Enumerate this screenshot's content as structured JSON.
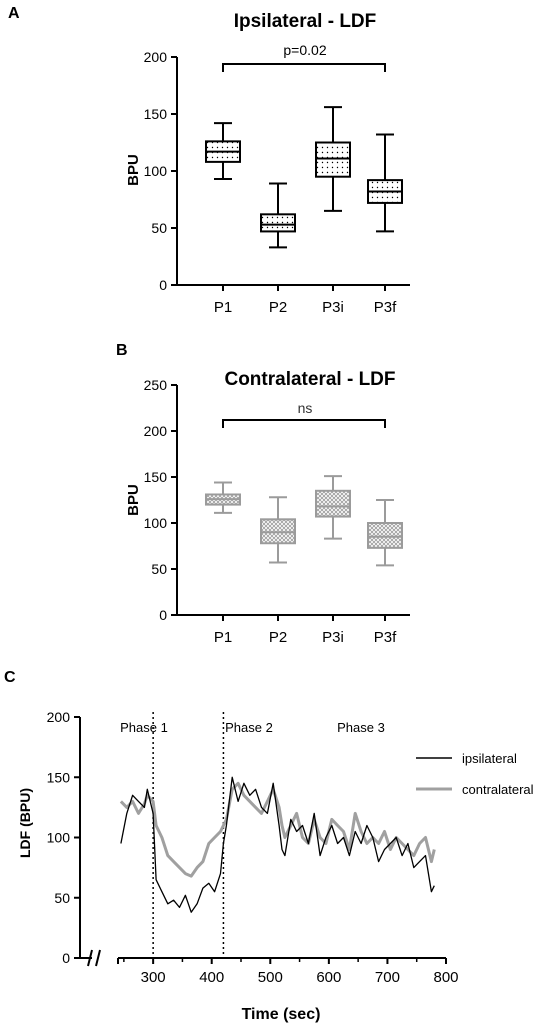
{
  "chart_data": [
    {
      "panel": "A",
      "type": "box",
      "title": "Ipsilateral - LDF",
      "ylabel": "BPU",
      "ylim": [
        0,
        200
      ],
      "yticks": [
        0,
        50,
        100,
        150,
        200
      ],
      "categories": [
        "P1",
        "P2",
        "P3i",
        "P3f"
      ],
      "boxes": [
        {
          "min": 93,
          "q1": 108,
          "median": 117,
          "q3": 126,
          "max": 142
        },
        {
          "min": 33,
          "q1": 47,
          "median": 53,
          "q3": 62,
          "max": 89
        },
        {
          "min": 65,
          "q1": 95,
          "median": 111,
          "q3": 125,
          "max": 156
        },
        {
          "min": 47,
          "q1": 72,
          "median": 82,
          "q3": 92,
          "max": 132
        }
      ],
      "comparison": {
        "from": 0,
        "to": 3,
        "label": "p=0.02"
      },
      "color": "#000000",
      "fill": "dotted"
    },
    {
      "panel": "B",
      "type": "box",
      "title": "Contralateral - LDF",
      "ylabel": "BPU",
      "ylim": [
        0,
        250
      ],
      "yticks": [
        0,
        50,
        100,
        150,
        200,
        250
      ],
      "categories": [
        "P1",
        "P2",
        "P3i",
        "P3f"
      ],
      "boxes": [
        {
          "min": 111,
          "q1": 120,
          "median": 126,
          "q3": 131,
          "max": 144
        },
        {
          "min": 57,
          "q1": 78,
          "median": 90,
          "q3": 104,
          "max": 128
        },
        {
          "min": 83,
          "q1": 107,
          "median": 118,
          "q3": 135,
          "max": 151
        },
        {
          "min": 54,
          "q1": 73,
          "median": 85,
          "q3": 100,
          "max": 125
        }
      ],
      "comparison": {
        "from": 0,
        "to": 3,
        "label": "ns"
      },
      "color": "#9b9b9b",
      "fill": "crosshatch"
    },
    {
      "panel": "C",
      "type": "line",
      "xlabel": "Time (sec)",
      "ylabel": "LDF (BPU)",
      "ylim": [
        0,
        200
      ],
      "yticks": [
        0,
        50,
        100,
        150,
        200
      ],
      "xlim": [
        240,
        800
      ],
      "xticks": [
        300,
        400,
        500,
        600,
        700,
        800
      ],
      "phase_lines": [
        300,
        420
      ],
      "phase_labels": [
        {
          "x": 262,
          "text": "Phase 1"
        },
        {
          "x": 460,
          "text": "Phase 2"
        },
        {
          "x": 630,
          "text": "Phase 3"
        }
      ],
      "legend_position": "top-right",
      "series": [
        {
          "name": "ipsilateral",
          "color": "#000000",
          "x": [
            245,
            255,
            265,
            275,
            285,
            290,
            300,
            305,
            315,
            325,
            335,
            345,
            355,
            365,
            375,
            385,
            395,
            405,
            415,
            420,
            425,
            435,
            445,
            455,
            465,
            475,
            485,
            495,
            505,
            515,
            520,
            525,
            535,
            545,
            555,
            565,
            575,
            585,
            595,
            605,
            615,
            625,
            635,
            645,
            655,
            665,
            675,
            685,
            695,
            705,
            715,
            725,
            735,
            745,
            755,
            765,
            775,
            780
          ],
          "y": [
            95,
            120,
            135,
            130,
            125,
            140,
            120,
            65,
            55,
            45,
            48,
            42,
            52,
            38,
            45,
            58,
            62,
            55,
            70,
            95,
            110,
            150,
            130,
            145,
            135,
            140,
            125,
            120,
            145,
            110,
            90,
            85,
            115,
            105,
            110,
            95,
            120,
            85,
            100,
            110,
            95,
            100,
            85,
            105,
            95,
            110,
            100,
            80,
            90,
            95,
            100,
            85,
            95,
            75,
            80,
            85,
            55,
            60
          ]
        },
        {
          "name": "contralateral",
          "color": "#a0a0a0",
          "x": [
            245,
            255,
            265,
            275,
            285,
            290,
            300,
            305,
            315,
            325,
            335,
            345,
            355,
            365,
            375,
            385,
            395,
            405,
            415,
            420,
            425,
            435,
            445,
            455,
            465,
            475,
            485,
            495,
            505,
            515,
            520,
            525,
            535,
            545,
            555,
            565,
            575,
            585,
            595,
            605,
            615,
            625,
            635,
            645,
            655,
            665,
            675,
            685,
            695,
            705,
            715,
            725,
            735,
            745,
            755,
            765,
            775,
            780
          ],
          "y": [
            130,
            125,
            130,
            120,
            128,
            135,
            130,
            110,
            100,
            85,
            80,
            75,
            70,
            68,
            75,
            80,
            95,
            100,
            105,
            110,
            115,
            140,
            145,
            135,
            130,
            125,
            120,
            130,
            140,
            125,
            110,
            100,
            110,
            120,
            100,
            95,
            115,
            100,
            95,
            115,
            110,
            105,
            90,
            120,
            105,
            95,
            100,
            95,
            105,
            90,
            100,
            95,
            90,
            85,
            95,
            100,
            80,
            90
          ]
        }
      ]
    }
  ],
  "panel_labels": {
    "a": "A",
    "b": "B",
    "c": "C"
  }
}
